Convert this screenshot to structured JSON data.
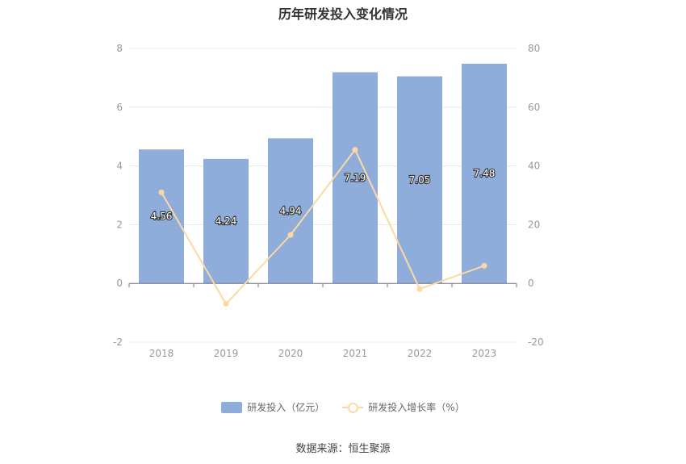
{
  "title": "历年研发投入变化情况",
  "source": "数据来源：恒生聚源",
  "colors": {
    "bar": "#8eaddb",
    "line": "#fcd9a2",
    "grid": "#e8e8e8",
    "axis": "#999999",
    "tick_text": "#999999"
  },
  "chart_data": {
    "type": "bar",
    "categories": [
      "2018",
      "2019",
      "2020",
      "2021",
      "2022",
      "2023"
    ],
    "series": [
      {
        "name": "研发投入（亿元）",
        "type": "bar",
        "axis": "left",
        "values": [
          4.56,
          4.24,
          4.94,
          7.19,
          7.05,
          7.48
        ],
        "labels": [
          "4.56",
          "4.24",
          "4.94",
          "7.19",
          "7.05",
          "7.48"
        ]
      },
      {
        "name": "研发投入增长率（%）",
        "type": "line",
        "axis": "right",
        "values": [
          31,
          -7,
          16.5,
          45.5,
          -1.9,
          6
        ]
      }
    ],
    "y_left": {
      "ylim": [
        -2,
        8
      ],
      "ticks": [
        "-2",
        "0",
        "2",
        "4",
        "6",
        "8"
      ]
    },
    "y_right": {
      "ylim": [
        -20,
        80
      ],
      "ticks": [
        "-20",
        "0",
        "20",
        "40",
        "60",
        "80"
      ]
    },
    "grid": true,
    "legend": "bottom-center"
  }
}
